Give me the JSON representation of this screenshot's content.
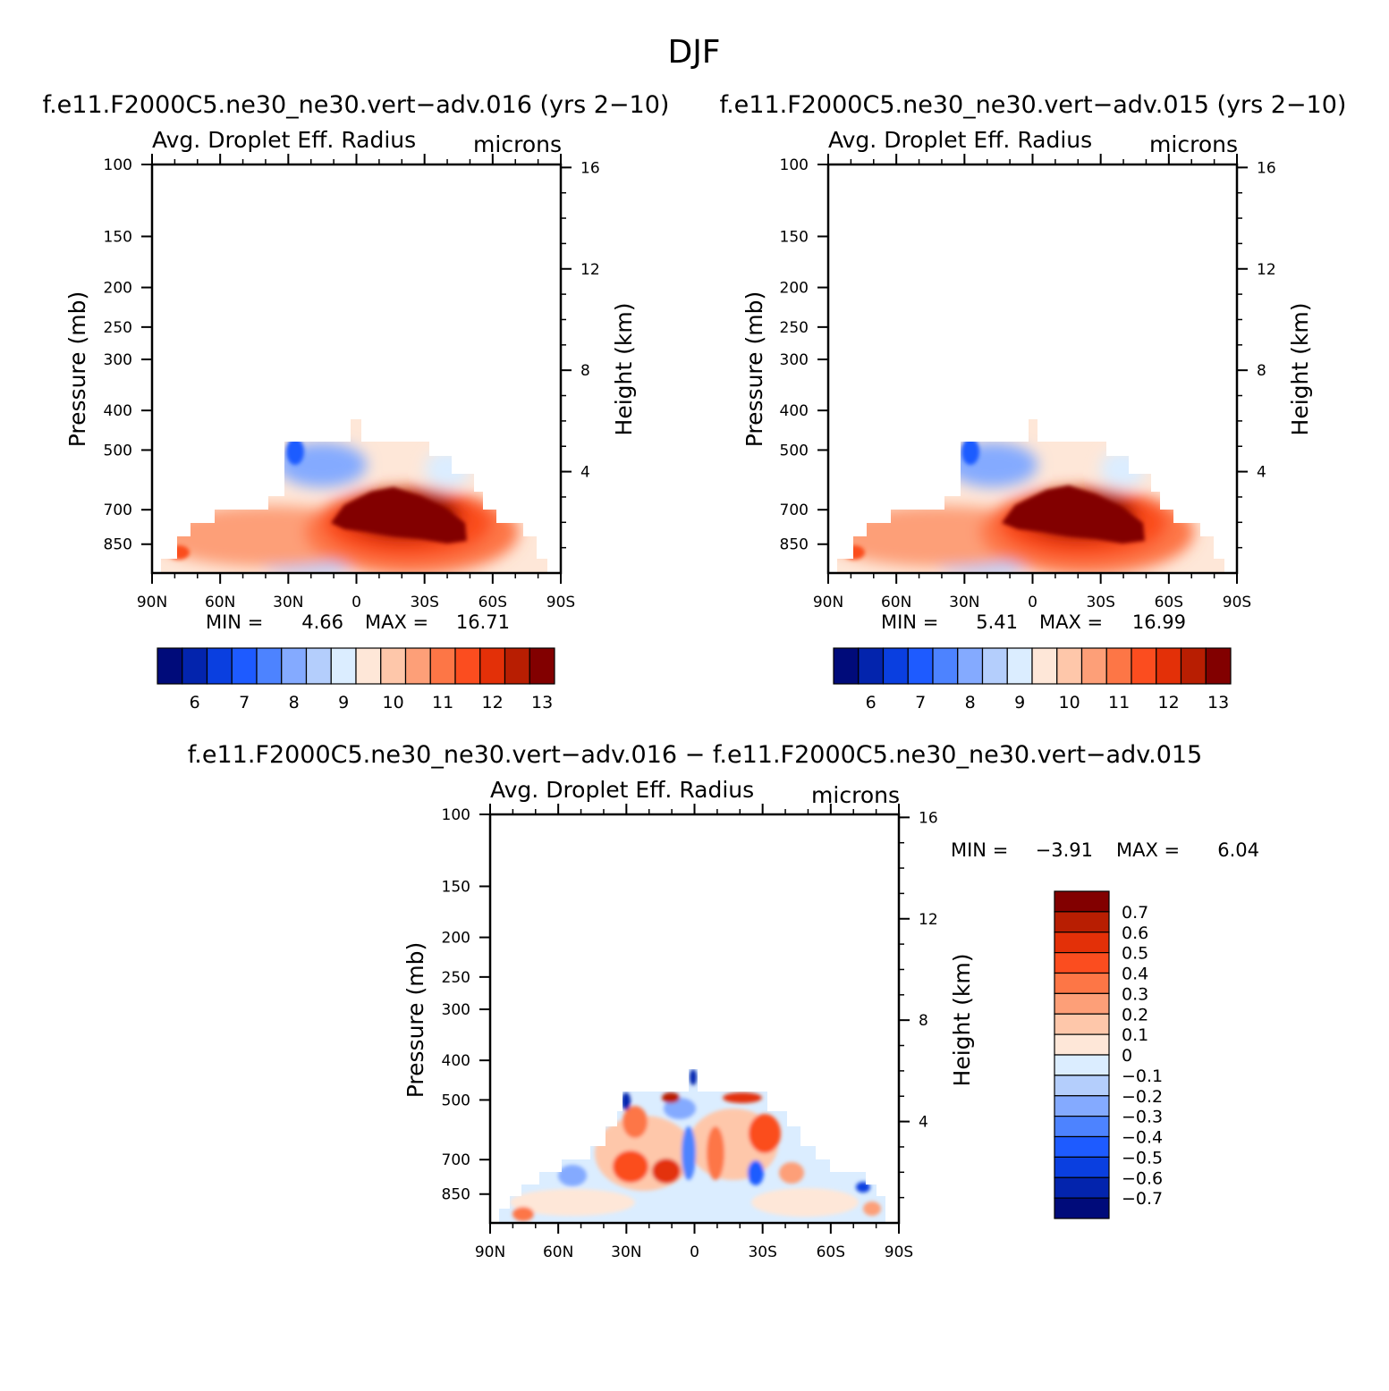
{
  "figure": {
    "title": "DJF"
  },
  "panels": [
    {
      "id": "left",
      "case_title": "f.e11.F2000C5.ne30_ne30.vert−adv.016 (yrs 2−10)",
      "variable": "Avg. Droplet Eff. Radius",
      "units": "microns",
      "ylabel": "Pressure (mb)",
      "ylabel_right": "Height (km)",
      "stats": {
        "min_label": "MIN =",
        "min": "4.66",
        "max_label": "MAX =",
        "max": "16.71"
      }
    },
    {
      "id": "right",
      "case_title": "f.e11.F2000C5.ne30_ne30.vert−adv.015 (yrs 2−10)",
      "variable": "Avg. Droplet Eff. Radius",
      "units": "microns",
      "ylabel": "Pressure (mb)",
      "ylabel_right": "Height (km)",
      "stats": {
        "min_label": "MIN =",
        "min": "5.41",
        "max_label": "MAX =",
        "max": "16.99"
      }
    },
    {
      "id": "diff",
      "case_title": "f.e11.F2000C5.ne30_ne30.vert−adv.016 − f.e11.F2000C5.ne30_ne30.vert−adv.015",
      "variable": "Avg. Droplet Eff. Radius",
      "units": "microns",
      "ylabel": "Pressure (mb)",
      "ylabel_right": "Height (km)",
      "stats": {
        "min_label": "MIN =",
        "min": "−3.91",
        "max_label": "MAX =",
        "max": "6.04"
      }
    }
  ],
  "chart_data": {
    "type": "heatmap",
    "x_ticks": [
      "90N",
      "60N",
      "30N",
      "0",
      "30S",
      "60S",
      "90S"
    ],
    "x_values": [
      90,
      60,
      30,
      0,
      -30,
      -60,
      -90
    ],
    "y_ticks": [
      "100",
      "150",
      "200",
      "250",
      "300",
      "400",
      "500",
      "700",
      "850"
    ],
    "y_values": [
      100,
      150,
      200,
      250,
      300,
      400,
      500,
      700,
      850
    ],
    "y_scale": "log",
    "ylim": [
      100,
      1000
    ],
    "y2_ticks": [
      "16",
      "12",
      "8",
      "4"
    ],
    "y2_values": [
      16,
      12,
      8,
      4
    ],
    "colormap": [
      "#000b7a",
      "#0324ad",
      "#0a3fe0",
      "#1e5bff",
      "#4d83ff",
      "#84aaff",
      "#b4cefc",
      "#dbedff",
      "#fee7d8",
      "#fec7aa",
      "#fd9f78",
      "#fd7646",
      "#fb4d1f",
      "#e33008",
      "#b81e02",
      "#820000"
    ],
    "mean_levels": {
      "labels": [
        "6",
        "7",
        "8",
        "9",
        "10",
        "11",
        "12",
        "13"
      ],
      "values": [
        6,
        7,
        8,
        9,
        10,
        11,
        12,
        13
      ]
    },
    "diff_levels": {
      "labels": [
        "0.7",
        "0.6",
        "0.5",
        "0.4",
        "0.3",
        "0.2",
        "0.1",
        "0",
        "−0.1",
        "−0.2",
        "−0.3",
        "−0.4",
        "−0.5",
        "−0.6",
        "−0.7"
      ],
      "values": [
        0.7,
        0.6,
        0.5,
        0.4,
        0.3,
        0.2,
        0.1,
        0,
        -0.1,
        -0.2,
        -0.3,
        -0.4,
        -0.5,
        -0.6,
        -0.7
      ]
    }
  }
}
